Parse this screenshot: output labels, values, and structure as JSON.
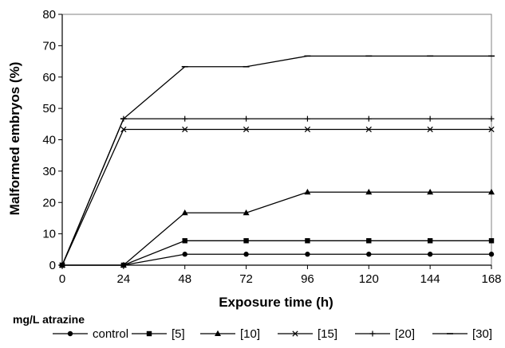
{
  "chart_data": {
    "type": "line",
    "title": "",
    "xlabel": "Exposure time (h)",
    "ylabel": "Malformed embryos (%)",
    "x": [
      0,
      24,
      48,
      72,
      96,
      120,
      144,
      168
    ],
    "xticks": [
      0,
      24,
      48,
      72,
      96,
      120,
      144,
      168
    ],
    "yticks": [
      0,
      10,
      20,
      30,
      40,
      50,
      60,
      70,
      80
    ],
    "xlim": [
      0,
      168
    ],
    "ylim": [
      0,
      80
    ],
    "grid": false,
    "legend_title": "mg/L atrazine",
    "legend_position": "bottom",
    "series": [
      {
        "name": "control",
        "marker": "circle",
        "values": [
          0,
          0,
          3.5,
          3.5,
          3.5,
          3.5,
          3.5,
          3.5
        ]
      },
      {
        "name": "[5]",
        "marker": "square",
        "values": [
          0,
          0,
          7.8,
          7.8,
          7.8,
          7.8,
          7.8,
          7.8
        ]
      },
      {
        "name": "[10]",
        "marker": "triangle",
        "values": [
          0,
          0,
          16.7,
          16.7,
          23.3,
          23.3,
          23.3,
          23.3
        ]
      },
      {
        "name": "[15]",
        "marker": "x",
        "values": [
          0,
          43.3,
          43.3,
          43.3,
          43.3,
          43.3,
          43.3,
          43.3
        ]
      },
      {
        "name": "[20]",
        "marker": "plus",
        "values": [
          0,
          46.7,
          46.7,
          46.7,
          46.7,
          46.7,
          46.7,
          46.7
        ]
      },
      {
        "name": "[30]",
        "marker": "dash",
        "values": [
          0,
          46.7,
          63.3,
          63.3,
          66.7,
          66.7,
          66.7,
          66.7
        ]
      }
    ],
    "colors": {
      "line": "#000000",
      "background": "#ffffff"
    }
  }
}
